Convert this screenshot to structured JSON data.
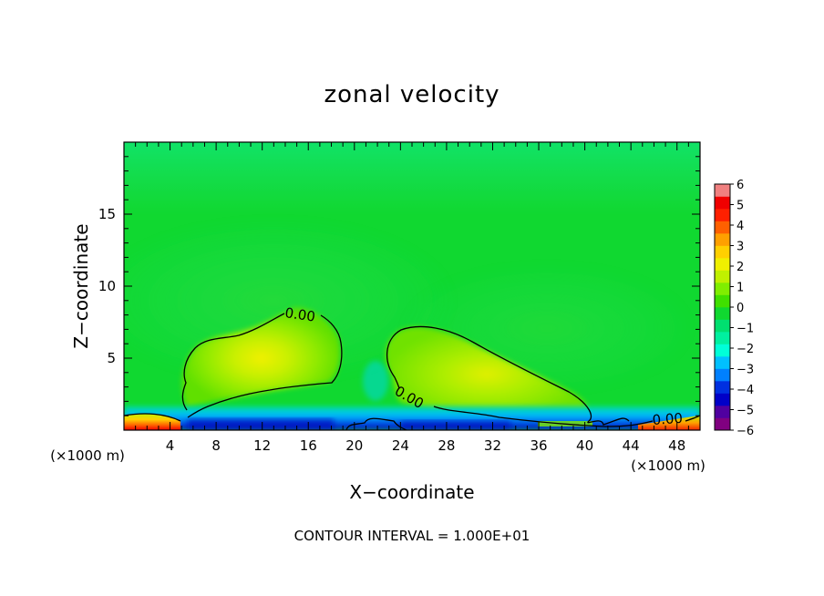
{
  "chart_data": {
    "type": "heatmap",
    "title": "zonal velocity",
    "xlabel": "X−coordinate",
    "ylabel": "Z−coordinate",
    "x_units_left": "(×1000 m)",
    "x_units_right": "(×1000 m)",
    "footer": "CONTOUR INTERVAL = 1.000E+01",
    "xlim": [
      0,
      50
    ],
    "ylim": [
      0,
      20
    ],
    "x_ticks": [
      4,
      8,
      12,
      16,
      20,
      24,
      28,
      32,
      36,
      40,
      44,
      48
    ],
    "x_tick_labels": [
      "4",
      "8",
      "12",
      "16",
      "20",
      "24",
      "28",
      "32",
      "36",
      "40",
      "44",
      "48"
    ],
    "y_ticks": [
      5,
      10,
      15
    ],
    "y_tick_labels": [
      "5",
      "10",
      "15"
    ],
    "background_level": -0.6,
    "colorbar": {
      "range": [
        -6,
        6
      ],
      "tick_labels": [
        "6",
        "5",
        "4",
        "3",
        "2",
        "1",
        "0",
        "−1",
        "−2",
        "−3",
        "−4",
        "−5",
        "−6"
      ],
      "colors": [
        "#800080",
        "#5000a0",
        "#0000c8",
        "#0030e0",
        "#0080ff",
        "#00c0ff",
        "#00ffd8",
        "#00f0a0",
        "#00e070",
        "#10d830",
        "#40e000",
        "#80ee00",
        "#c0f000",
        "#f0f000",
        "#ffd000",
        "#ffa000",
        "#ff6000",
        "#ff2000",
        "#f00000",
        "#f08080"
      ]
    },
    "contour_label": "0.00",
    "contour_labels": [
      "0.00",
      "0.00",
      "0.00"
    ],
    "features": [
      {
        "kind": "positive_cell",
        "center_x": 12.5,
        "center_z": 4.5,
        "peak": 2.5
      },
      {
        "kind": "positive_cell",
        "center_x": 28,
        "center_z": 3.5,
        "peak": 2.0
      },
      {
        "kind": "negative_layer",
        "z_top": 0.8,
        "x_range": [
          5,
          42
        ],
        "min": -5
      }
    ]
  }
}
